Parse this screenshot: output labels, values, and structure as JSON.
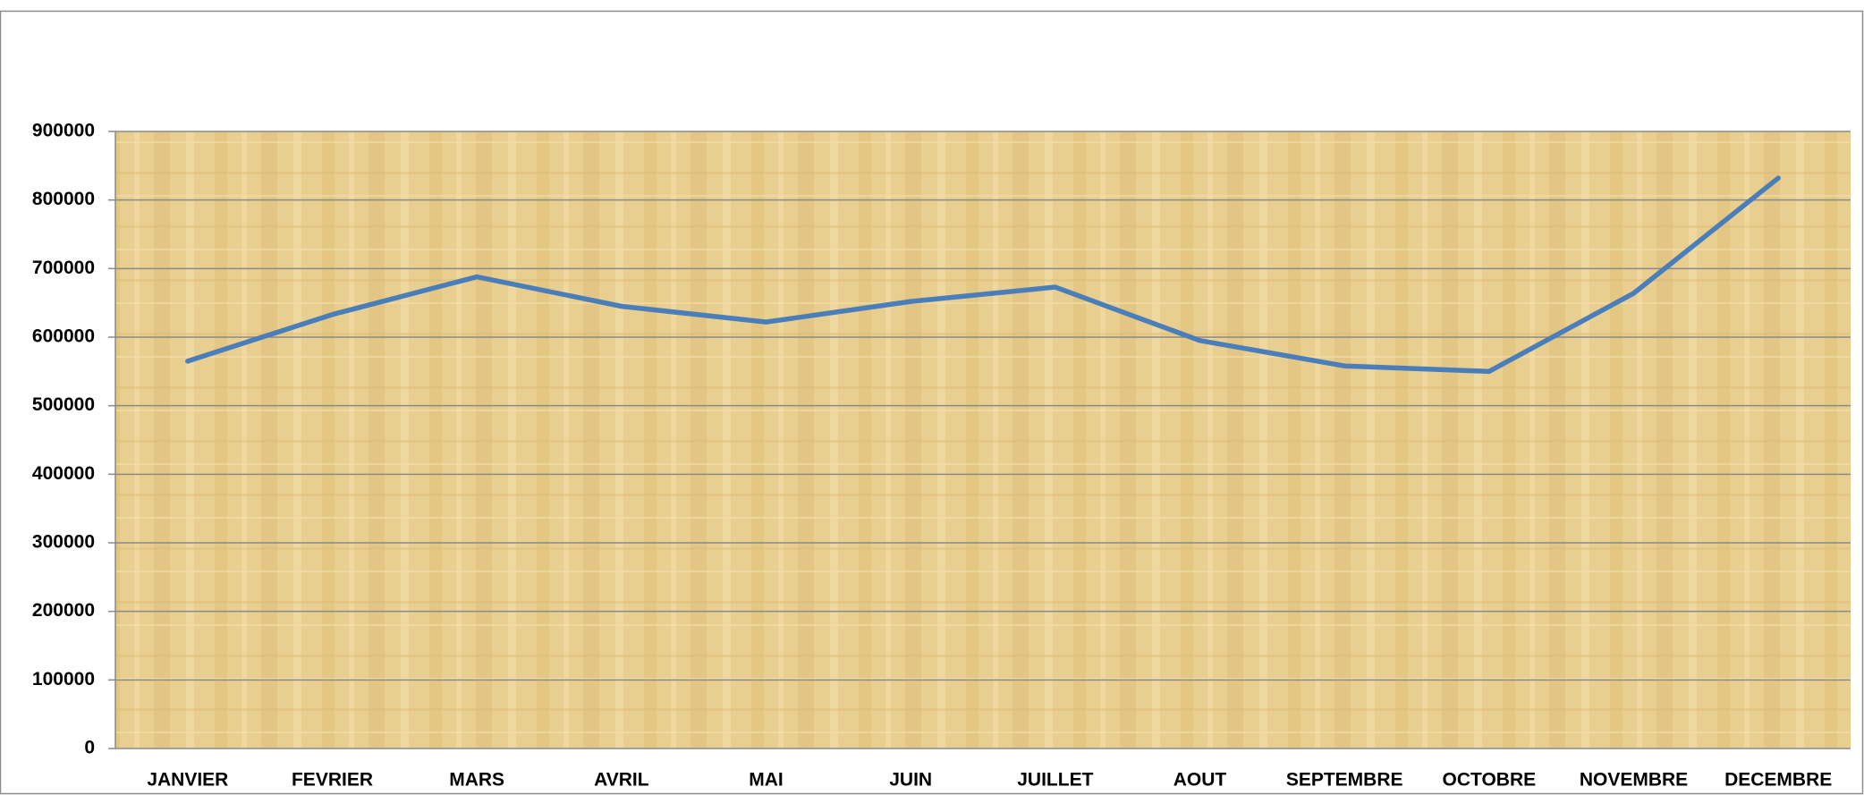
{
  "chart_data": {
    "type": "line",
    "categories": [
      "JANVIER",
      "FEVRIER",
      "MARS",
      "AVRIL",
      "MAI",
      "JUIN",
      "JUILLET",
      "AOUT",
      "SEPTEMBRE",
      "OCTOBRE",
      "NOVEMBRE",
      "DECEMBRE"
    ],
    "series": [
      {
        "color": "#4a7ebb",
        "values": [
          565000,
          633000,
          688000,
          645000,
          622000,
          652000,
          673000,
          595000,
          558000,
          550000,
          664000,
          832000
        ]
      }
    ],
    "ylim": [
      0,
      900000
    ],
    "yticks": [
      0,
      100000,
      200000,
      300000,
      400000,
      500000,
      600000,
      700000,
      800000,
      900000
    ],
    "grid": true
  }
}
